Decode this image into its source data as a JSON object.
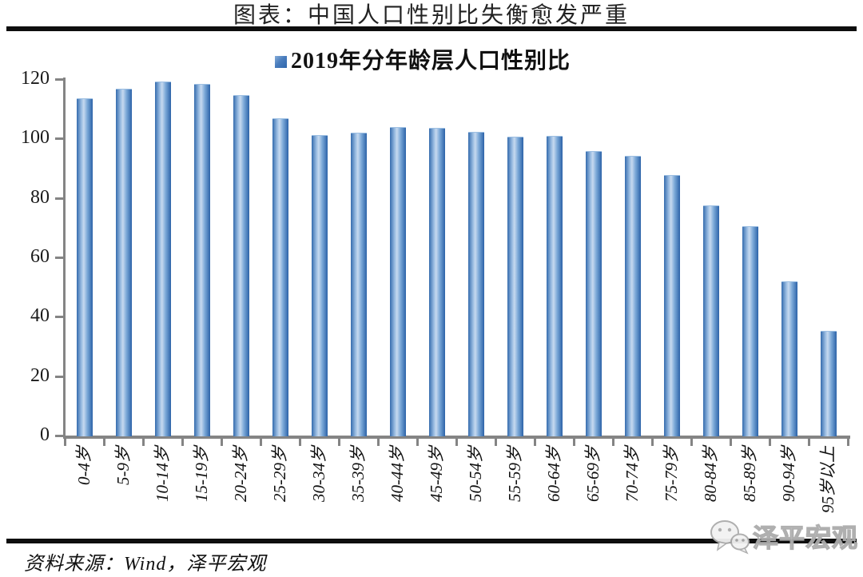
{
  "page": {
    "title": "图表：中国人口性别比失衡愈发严重",
    "source_note": "资料来源：Wind，泽平宏观",
    "watermark_text": "泽平宏观",
    "watermark_icon": "wechat-logo-icon"
  },
  "chart_data": {
    "type": "bar",
    "title": "图表：中国人口性别比失衡愈发严重",
    "legend": [
      "2019年分年龄层人口性别比"
    ],
    "legend_position": "top-center",
    "categories": [
      "0-4岁",
      "5-9岁",
      "10-14岁",
      "15-19岁",
      "20-24岁",
      "25-29岁",
      "30-34岁",
      "35-39岁",
      "40-44岁",
      "45-49岁",
      "50-54岁",
      "55-59岁",
      "60-64岁",
      "65-69岁",
      "70-74岁",
      "75-79岁",
      "80-84岁",
      "85-89岁",
      "90-94岁",
      "95岁以上"
    ],
    "values": [
      113.6,
      116.9,
      119.1,
      118.4,
      114.6,
      106.7,
      101.3,
      102.1,
      103.8,
      103.6,
      102.2,
      100.7,
      100.9,
      95.9,
      94.1,
      87.8,
      77.4,
      70.5,
      51.9,
      35.2
    ],
    "xlabel": "",
    "ylabel": "",
    "ylim": [
      0,
      120
    ],
    "ytick_step": 20,
    "yticks": [
      0,
      20,
      40,
      60,
      80,
      100,
      120
    ],
    "grid": false,
    "colors": {
      "bar_edge": "#2c63a8",
      "bar_center": "#c6d9ef",
      "axis": "#848484",
      "text": "#1a1a1a",
      "rule": "#0e0e0e",
      "watermark": "#b5b5b5"
    }
  }
}
